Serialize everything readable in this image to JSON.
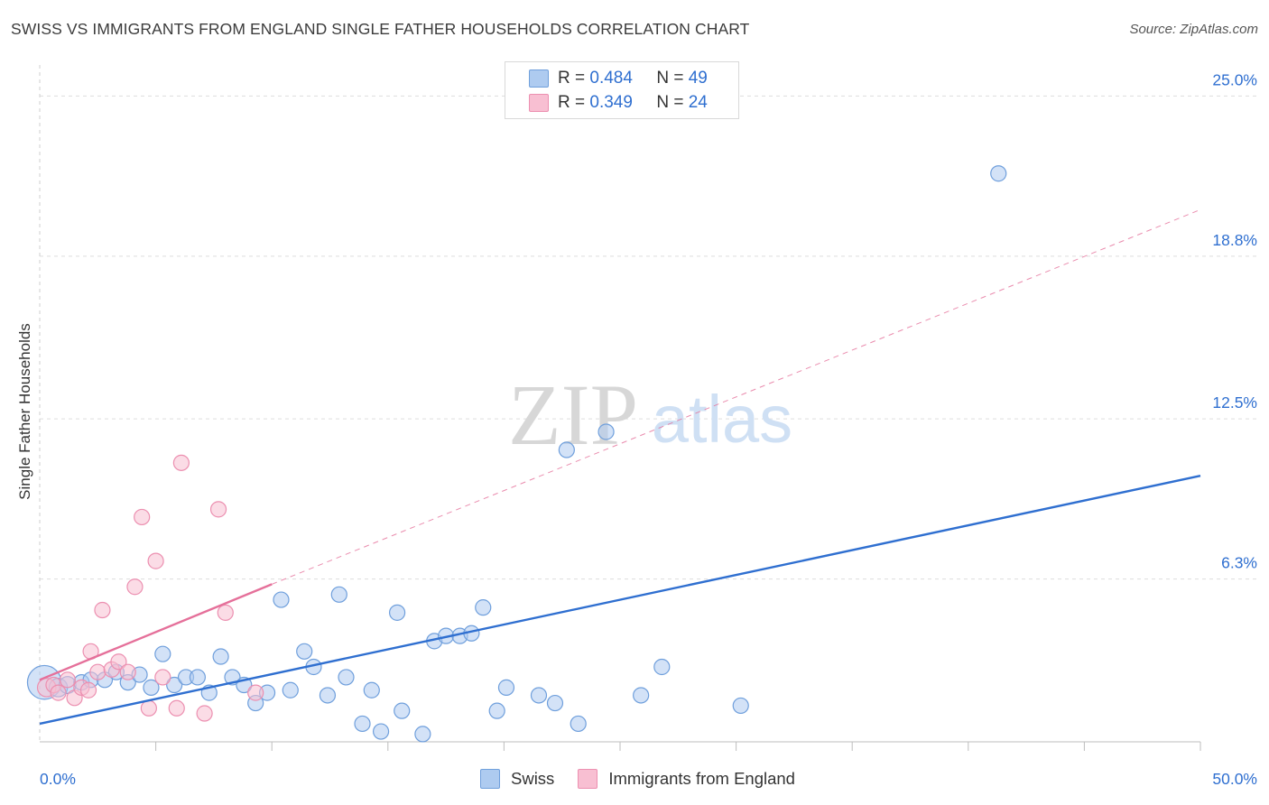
{
  "title": "SWISS VS IMMIGRANTS FROM ENGLAND SINGLE FATHER HOUSEHOLDS CORRELATION CHART",
  "source": "Source: ZipAtlas.com",
  "watermark": {
    "zip": "ZIP",
    "atlas": "atlas"
  },
  "colors": {
    "swiss_fill": "#aecbf0",
    "swiss_stroke": "#6f9fdc",
    "swiss_line": "#2f6fd0",
    "eng_fill": "#f8bfd2",
    "eng_stroke": "#ec8fb0",
    "eng_line": "#e5709a",
    "tick": "#2f6fd0",
    "grid": "#dddddd"
  },
  "legend_top": [
    {
      "r_label": "R = ",
      "r_value": "0.484",
      "n_label": "N = ",
      "n_value": "49"
    },
    {
      "r_label": "R = ",
      "r_value": "0.349",
      "n_label": "N = ",
      "n_value": "24"
    }
  ],
  "legend_bottom": [
    "Swiss",
    "Immigrants from England"
  ],
  "chart_data": {
    "type": "scatter",
    "title": "SWISS VS IMMIGRANTS FROM ENGLAND SINGLE FATHER HOUSEHOLDS CORRELATION CHART",
    "xlabel": "",
    "ylabel": "Single Father Households",
    "xlim": [
      0,
      50
    ],
    "ylim": [
      0,
      26.2
    ],
    "x_tick_labels": [
      {
        "value": 0,
        "label": "0.0%"
      },
      {
        "value": 50,
        "label": "50.0%"
      }
    ],
    "y_ticks": [
      {
        "value": 6.3,
        "label": "6.3%"
      },
      {
        "value": 12.5,
        "label": "12.5%"
      },
      {
        "value": 18.8,
        "label": "18.8%"
      },
      {
        "value": 25.0,
        "label": "25.0%"
      }
    ],
    "grid": true,
    "series": [
      {
        "name": "Swiss",
        "R": 0.484,
        "N": 49,
        "trend": {
          "x0": 0,
          "y0": 0.7,
          "x1": 50,
          "y1": 10.3,
          "style": "solid"
        },
        "points": [
          [
            0.2,
            2.3,
            22
          ],
          [
            0.8,
            2.1,
            12
          ],
          [
            1.2,
            2.2,
            11
          ],
          [
            1.8,
            2.3,
            10
          ],
          [
            2.2,
            2.4,
            10
          ],
          [
            2.8,
            2.4,
            10
          ],
          [
            3.3,
            2.7,
            10
          ],
          [
            3.8,
            2.3,
            10
          ],
          [
            4.3,
            2.6,
            10
          ],
          [
            4.8,
            2.1,
            10
          ],
          [
            5.3,
            3.4,
            10
          ],
          [
            5.8,
            2.2,
            10
          ],
          [
            6.3,
            2.5,
            10
          ],
          [
            6.8,
            2.5,
            10
          ],
          [
            7.3,
            1.9,
            10
          ],
          [
            7.8,
            3.3,
            10
          ],
          [
            8.3,
            2.5,
            10
          ],
          [
            8.8,
            2.2,
            10
          ],
          [
            9.3,
            1.5,
            10
          ],
          [
            9.8,
            1.9,
            10
          ],
          [
            10.4,
            5.5,
            10
          ],
          [
            10.8,
            2.0,
            10
          ],
          [
            11.4,
            3.5,
            10
          ],
          [
            11.8,
            2.9,
            10
          ],
          [
            12.4,
            1.8,
            10
          ],
          [
            12.9,
            5.7,
            10
          ],
          [
            13.2,
            2.5,
            10
          ],
          [
            13.9,
            0.7,
            10
          ],
          [
            14.3,
            2.0,
            10
          ],
          [
            14.7,
            0.4,
            10
          ],
          [
            15.4,
            5.0,
            10
          ],
          [
            15.6,
            1.2,
            10
          ],
          [
            16.5,
            0.3,
            10
          ],
          [
            17.0,
            3.9,
            10
          ],
          [
            17.5,
            4.1,
            10
          ],
          [
            18.1,
            4.1,
            10
          ],
          [
            18.6,
            4.2,
            10
          ],
          [
            19.1,
            5.2,
            10
          ],
          [
            19.7,
            1.2,
            10
          ],
          [
            20.1,
            2.1,
            10
          ],
          [
            21.5,
            1.8,
            10
          ],
          [
            22.2,
            1.5,
            10
          ],
          [
            22.7,
            11.3,
            10
          ],
          [
            23.2,
            0.7,
            10
          ],
          [
            24.4,
            12.0,
            10
          ],
          [
            25.9,
            1.8,
            10
          ],
          [
            26.8,
            2.9,
            10
          ],
          [
            30.2,
            1.4,
            10
          ],
          [
            41.3,
            22.0,
            10
          ]
        ]
      },
      {
        "name": "Immigrants from England",
        "R": 0.349,
        "N": 24,
        "trend": {
          "x0": 0,
          "y0": 2.4,
          "x1": 10,
          "y1": 6.1,
          "style": "solid",
          "extension": {
            "x1": 50,
            "y1": 20.6,
            "style": "dashed"
          }
        },
        "points": [
          [
            0.3,
            2.1,
            12
          ],
          [
            0.6,
            2.2,
            10
          ],
          [
            0.8,
            1.9,
            10
          ],
          [
            1.2,
            2.4,
            10
          ],
          [
            1.5,
            1.7,
            10
          ],
          [
            1.8,
            2.1,
            10
          ],
          [
            2.1,
            2.0,
            10
          ],
          [
            2.2,
            3.5,
            10
          ],
          [
            2.5,
            2.7,
            10
          ],
          [
            2.7,
            5.1,
            10
          ],
          [
            3.1,
            2.8,
            10
          ],
          [
            3.4,
            3.1,
            10
          ],
          [
            3.8,
            2.7,
            10
          ],
          [
            4.1,
            6.0,
            10
          ],
          [
            4.4,
            8.7,
            10
          ],
          [
            4.7,
            1.3,
            10
          ],
          [
            5.0,
            7.0,
            10
          ],
          [
            5.3,
            2.5,
            10
          ],
          [
            5.9,
            1.3,
            10
          ],
          [
            6.1,
            10.8,
            10
          ],
          [
            7.1,
            1.1,
            10
          ],
          [
            7.7,
            9.0,
            10
          ],
          [
            8.0,
            5.0,
            10
          ],
          [
            9.3,
            1.9,
            10
          ]
        ]
      }
    ]
  }
}
